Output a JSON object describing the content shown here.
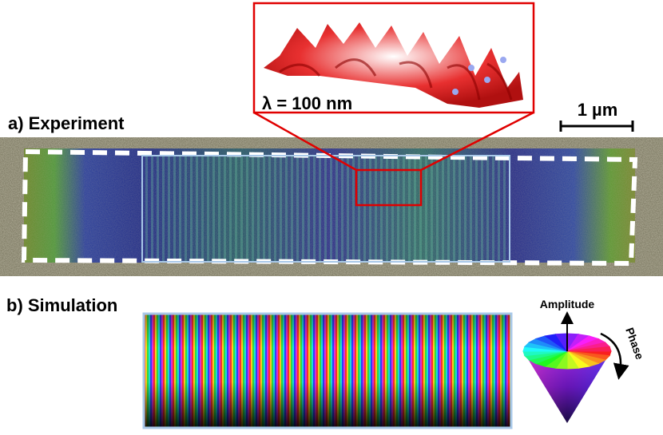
{
  "panels": {
    "a": {
      "label": "a) Experiment",
      "inset_label": "λ = 100 nm",
      "scale_bar": "1 µm"
    },
    "b": {
      "label": "b) Simulation",
      "amplitude": "Amplitude",
      "phase": "Phase"
    }
  }
}
